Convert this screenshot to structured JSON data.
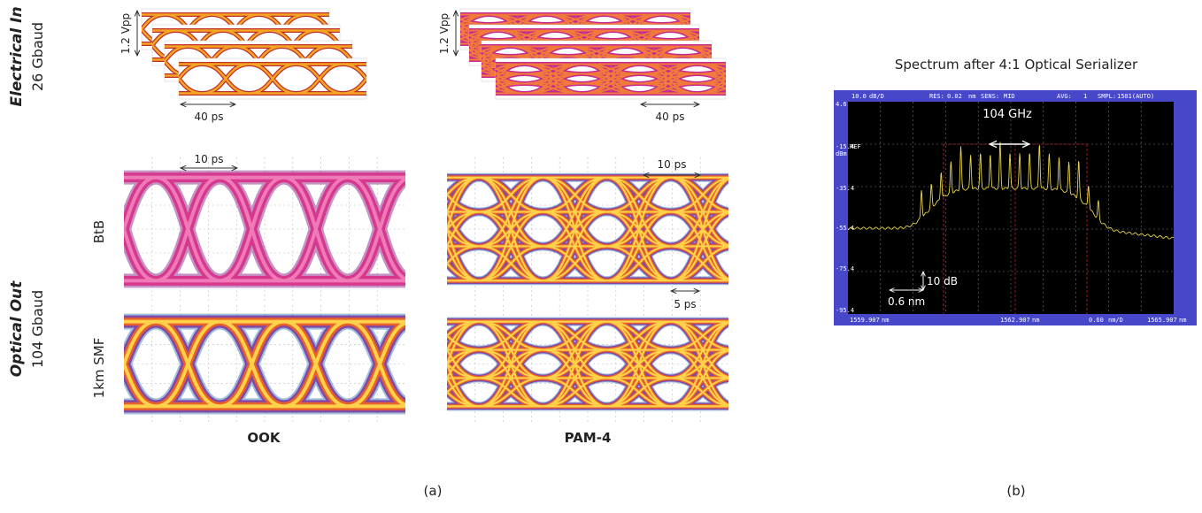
{
  "panel_a": {
    "rows": {
      "electrical": {
        "label": "Electrical In",
        "rate": "26 Gbaud"
      },
      "optical": {
        "label": "Optical Out",
        "rate": "104 Gbaud"
      }
    },
    "subrows": [
      "BtB",
      "1km SMF"
    ],
    "columns": [
      "OOK",
      "PAM-4"
    ],
    "annotations": {
      "vpp_ook": "1.2 Vpp",
      "vpp_pam4": "1.2 Vpp",
      "period_ook": "40 ps",
      "period_pam4": "40 ps",
      "ui_ook": "10 ps",
      "ui_pam4": "10 ps",
      "half_ui": "5 ps"
    },
    "caption": "(a)"
  },
  "panel_b": {
    "title": "Spectrum after 4:1 Optical Serializer",
    "screen": {
      "header": [
        "10.0",
        "dB/D",
        "RES:",
        "0.02",
        "nm",
        "SENS:",
        "MID",
        "AVG:",
        "1",
        "SMPL:",
        "1501(AUTO)"
      ],
      "ref_level": "-15.4",
      "ref": "REF",
      "unit": "dBm",
      "y_labels": [
        "4.6",
        "-35.4",
        "-55.4",
        "-75.4",
        "-95.4"
      ],
      "x_labels": [
        "1559.907",
        "1562.907",
        "0.60",
        "1565.907"
      ],
      "x_units": [
        "nm",
        "nm",
        "nm/D",
        "nm"
      ]
    },
    "annotations": {
      "spacing": "104 GHz",
      "vertical": "10 dB",
      "horizontal": "0.6 nm"
    },
    "caption": "(b)"
  }
}
